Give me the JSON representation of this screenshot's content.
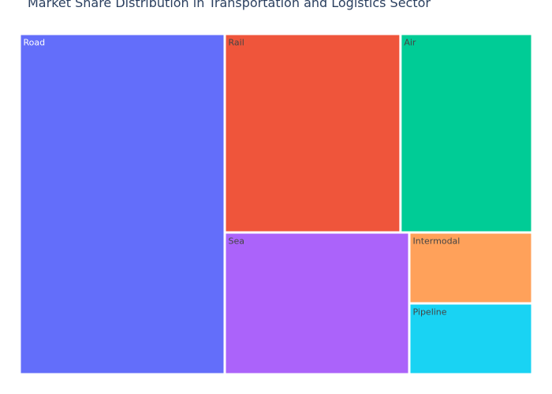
{
  "chart_data": {
    "type": "treemap",
    "title": "Market Share Distribution in Transportation and Logistics Sector",
    "items": [
      {
        "label": "Road",
        "value": 40,
        "color": "#636efa",
        "text_color": "#ffffff"
      },
      {
        "label": "Rail",
        "value": 20,
        "color": "#ef553b",
        "text_color": "#444444"
      },
      {
        "label": "Air",
        "value": 15,
        "color": "#00cc96",
        "text_color": "#444444"
      },
      {
        "label": "Sea",
        "value": 15,
        "color": "#ab63fa",
        "text_color": "#444444"
      },
      {
        "label": "Intermodal",
        "value": 5,
        "color": "#ffa15a",
        "text_color": "#444444"
      },
      {
        "label": "Pipeline",
        "value": 5,
        "color": "#19d3f3",
        "text_color": "#444444"
      }
    ]
  }
}
